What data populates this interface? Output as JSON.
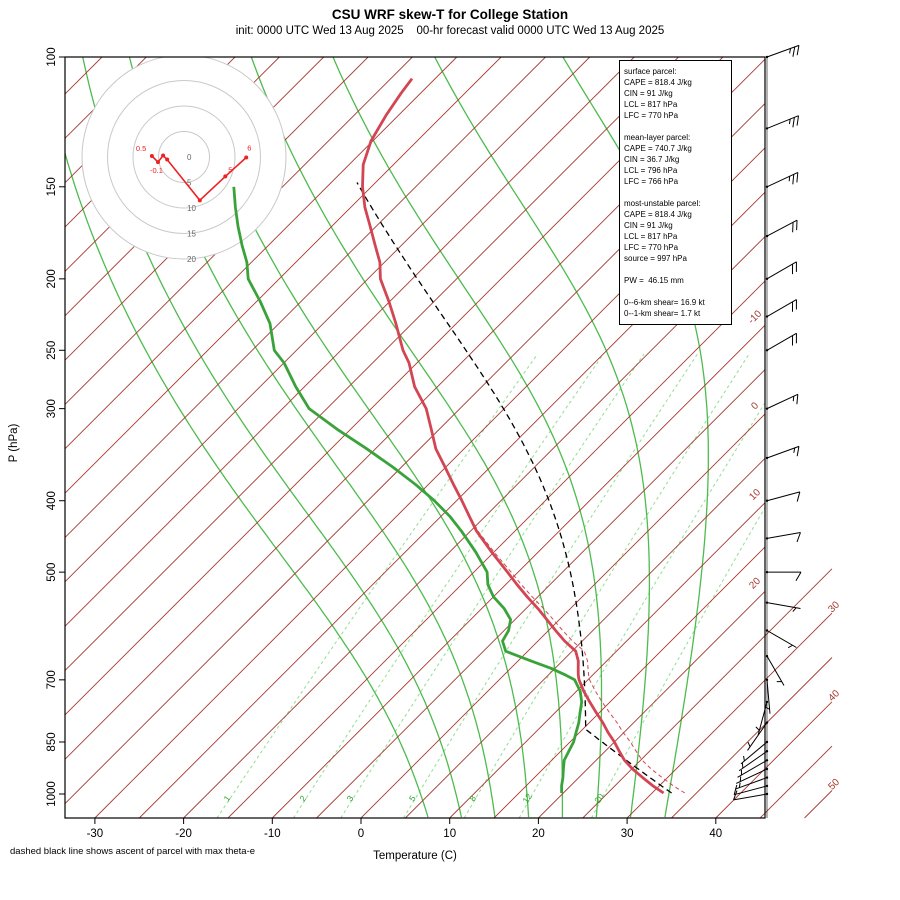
{
  "header": {
    "title": "CSU WRF skew-T for College Station",
    "subtitle": "init: 0000 UTC Wed 13 Aug 2025    00-hr forecast valid 0000 UTC Wed 13 Aug 2025"
  },
  "axes": {
    "y_label": "P (hPa)",
    "x_label": "Temperature (C)",
    "y_ticks": [
      100,
      150,
      200,
      250,
      300,
      400,
      500,
      700,
      850,
      1000
    ],
    "x_ticks": [
      -30,
      -20,
      -10,
      0,
      10,
      20,
      30,
      40
    ]
  },
  "footnote": "dashed black line shows ascent of parcel with max theta-e",
  "info_box": {
    "text": "surface parcel:\nCAPE = 818.4 J/kg\nCIN = 91 J/kg\nLCL = 817 hPa\nLFC = 770 hPa\n\nmean-layer parcel:\nCAPE = 740.7 J/kg\nCIN = 36.7 J/kg\nLCL = 796 hPa\nLFC = 766 hPa\n\nmost-unstable parcel:\nCAPE = 818.4 J/kg\nCIN = 91 J/kg\nLCL = 817 hPa\nLFC = 770 hPa\nsource = 997 hPa\n\nPW =  46.15 mm\n\n0--6-km shear= 16.9 kt\n0--1-km shear= 1.7 kt"
  },
  "colors": {
    "isotherm": "#a5392f",
    "mixing_line": "#9ae09a",
    "mixing_label": "#27a527",
    "moist_adiabat": "#4dbb4d",
    "dewpoint": "#3aa23a",
    "temperature": "#d24653",
    "parcel": "#000000",
    "hodograph_trace": "#ee2222",
    "hodograph_ring": "#c9c9c9",
    "hodograph_ring_label": "#666666",
    "frame": "#000000"
  },
  "chart_data": {
    "type": "skewt-log-p",
    "pressure_axis_hpa": {
      "top": 100,
      "bottom": 1050
    },
    "temp_axis_c": {
      "min": -40,
      "max": 45
    },
    "isotherm_step_c": 5,
    "isotherm_edge_labels_c": [
      -10,
      0,
      10,
      20,
      30,
      40,
      50
    ],
    "mixing_ratio_lines_g_kg": [
      1,
      2,
      3,
      5,
      8,
      12,
      20
    ],
    "moist_adiabats_thetaw_c": [
      4,
      8,
      12,
      16,
      20,
      24,
      28,
      32
    ],
    "temperature_profile": {
      "pressure_hpa": [
        997,
        975,
        950,
        925,
        900,
        875,
        850,
        825,
        800,
        775,
        750,
        725,
        700,
        690,
        675,
        660,
        640,
        620,
        600,
        580,
        560,
        540,
        520,
        500,
        470,
        440,
        420,
        400,
        380,
        360,
        340,
        320,
        300,
        280,
        260,
        250,
        230,
        215,
        200,
        190,
        180,
        170,
        160,
        150,
        140,
        130,
        120,
        112,
        107
      ],
      "temp_c": [
        31.3,
        29.3,
        27.2,
        25.1,
        23.2,
        21.6,
        20.0,
        18.2,
        16.5,
        14.6,
        12.7,
        10.8,
        9.0,
        8.4,
        7.6,
        6.8,
        5.4,
        3.0,
        0.8,
        -1.4,
        -3.7,
        -6.2,
        -8.7,
        -11.2,
        -15.2,
        -19.3,
        -21.8,
        -24.4,
        -27.2,
        -30.1,
        -33.2,
        -35.9,
        -38.8,
        -42.6,
        -45.9,
        -48.0,
        -51.8,
        -55.0,
        -58.6,
        -60.5,
        -63.0,
        -65.6,
        -68.4,
        -71.0,
        -73.4,
        -75.2,
        -76.4,
        -77.2,
        -77.6
      ]
    },
    "dewpoint_profile": {
      "pressure_hpa": [
        997,
        975,
        950,
        925,
        900,
        875,
        850,
        825,
        800,
        775,
        750,
        725,
        700,
        690,
        675,
        660,
        640,
        620,
        600,
        580,
        560,
        540,
        520,
        500,
        470,
        440,
        420,
        400,
        380,
        360,
        340,
        320,
        300,
        280,
        260,
        250,
        230,
        215,
        200,
        190,
        180,
        170,
        160,
        150
      ],
      "dewpoint_c": [
        19.8,
        19.0,
        18.2,
        17.3,
        16.4,
        15.9,
        15.4,
        14.6,
        13.8,
        12.8,
        11.8,
        10.4,
        8.5,
        7.0,
        4.5,
        1.5,
        -2.5,
        -4.0,
        -4.5,
        -5.5,
        -7.5,
        -10.0,
        -12.0,
        -13.5,
        -17.0,
        -21.0,
        -24.0,
        -27.5,
        -31.5,
        -36.0,
        -41.0,
        -46.5,
        -52.0,
        -56.0,
        -60.0,
        -62.5,
        -66.0,
        -69.5,
        -73.5,
        -75.5,
        -78.0,
        -80.5,
        -83.0,
        -85.5
      ]
    },
    "parcel_ascent": {
      "note": "max theta-e parcel",
      "start_pressure_hpa": 997,
      "start_temp_c": 32.2,
      "lcl_hpa": 817,
      "top_hpa": 147
    },
    "wind_barbs_p_dir_spd": [
      [
        1000,
        260,
        8
      ],
      [
        975,
        255,
        8
      ],
      [
        950,
        250,
        7
      ],
      [
        925,
        245,
        7
      ],
      [
        900,
        240,
        6
      ],
      [
        875,
        235,
        5
      ],
      [
        850,
        230,
        5
      ],
      [
        800,
        215,
        5
      ],
      [
        750,
        195,
        5
      ],
      [
        700,
        175,
        5
      ],
      [
        650,
        150,
        5
      ],
      [
        600,
        120,
        5
      ],
      [
        550,
        100,
        7
      ],
      [
        500,
        90,
        8
      ],
      [
        450,
        80,
        10
      ],
      [
        400,
        75,
        12
      ],
      [
        350,
        70,
        13
      ],
      [
        300,
        65,
        15
      ],
      [
        250,
        60,
        18
      ],
      [
        225,
        60,
        19
      ],
      [
        200,
        60,
        20
      ],
      [
        175,
        62,
        22
      ],
      [
        150,
        65,
        25
      ],
      [
        125,
        68,
        25
      ],
      [
        100,
        70,
        27
      ]
    ],
    "hodograph": {
      "rings_kt": [
        5,
        10,
        15,
        20
      ],
      "ring_labels": [
        "0",
        "5",
        "10",
        "15",
        "20"
      ],
      "trace": [
        {
          "u": -6.3,
          "v": 0.2,
          "label": "0.5",
          "lx": -16,
          "ly": -5
        },
        {
          "u": -5.1,
          "v": -1.0,
          "label": "-0.1",
          "lx": -8,
          "ly": 11
        },
        {
          "u": -4.1,
          "v": 0.3
        },
        {
          "u": -3.3,
          "v": -0.5
        },
        {
          "u": 3.1,
          "v": -8.5
        },
        {
          "u": 8.1,
          "v": -3.8,
          "label": "5",
          "lx": 3,
          "ly": -4
        },
        {
          "u": 12.2,
          "v": -0.1,
          "label": "6",
          "lx": 1,
          "ly": -7
        }
      ]
    },
    "indices": {
      "surface_parcel": {
        "cape_j_kg": 818.4,
        "cin_j_kg": 91,
        "lcl_hpa": 817,
        "lfc_hpa": 770
      },
      "mean_layer_parcel": {
        "cape_j_kg": 740.7,
        "cin_j_kg": 36.7,
        "lcl_hpa": 796,
        "lfc_hpa": 766
      },
      "most_unstable_parcel": {
        "cape_j_kg": 818.4,
        "cin_j_kg": 91,
        "lcl_hpa": 817,
        "lfc_hpa": 770,
        "source_hpa": 997
      },
      "pw_mm": 46.15,
      "shear_0_6km_kt": 16.9,
      "shear_0_1km_kt": 1.7
    }
  }
}
